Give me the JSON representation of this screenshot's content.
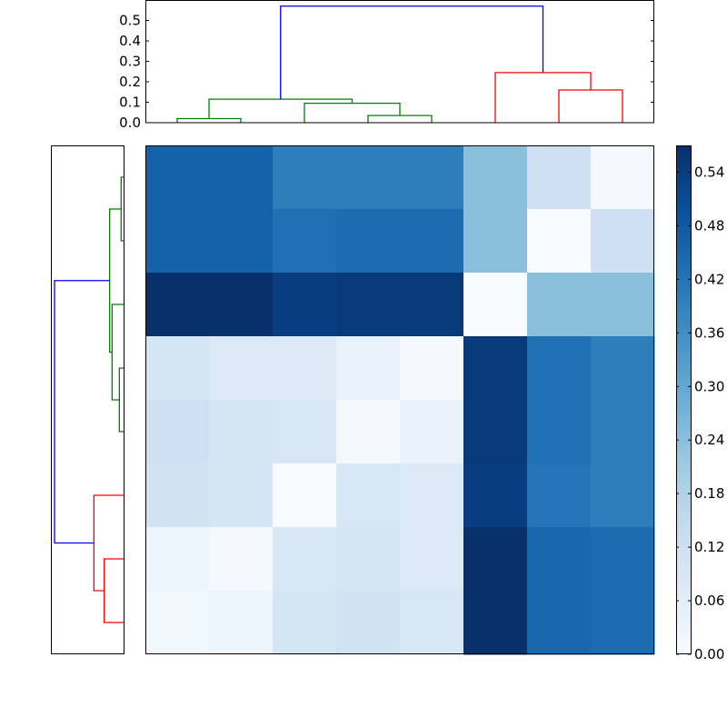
{
  "chart_data": [
    {
      "type": "dendrogram",
      "orientation": "top",
      "ylim": [
        0,
        0.6
      ],
      "yticks": [
        "0.0",
        "0.1",
        "0.2",
        "0.3",
        "0.4",
        "0.5"
      ],
      "leaf_count": 8,
      "links": [
        {
          "x1": 0.5,
          "x2": 1.5,
          "y1": 0.0,
          "y2": 0.0,
          "h": 0.02,
          "color": "#008000"
        },
        {
          "x1": 3.5,
          "x2": 4.5,
          "y1": 0.0,
          "y2": 0.0,
          "h": 0.035,
          "color": "#008000"
        },
        {
          "x1": 2.5,
          "x2": 4.0,
          "y1": 0.0,
          "y2": 0.035,
          "h": 0.095,
          "color": "#008000"
        },
        {
          "x1": 1.0,
          "x2": 3.25,
          "y1": 0.02,
          "y2": 0.095,
          "h": 0.115,
          "color": "#008000"
        },
        {
          "x1": 6.5,
          "x2": 7.5,
          "y1": 0.0,
          "y2": 0.0,
          "h": 0.16,
          "color": "#ff0000"
        },
        {
          "x1": 5.5,
          "x2": 7.0,
          "y1": 0.0,
          "y2": 0.16,
          "h": 0.245,
          "color": "#ff0000"
        },
        {
          "x1": 2.125,
          "x2": 6.25,
          "y1": 0.115,
          "y2": 0.245,
          "h": 0.57,
          "color": "#0000ff"
        }
      ]
    },
    {
      "type": "dendrogram",
      "orientation": "left",
      "leaf_count": 8,
      "links": [
        {
          "y1": 0.5,
          "y2": 1.5,
          "x1": 0.0,
          "x2": 0.0,
          "h": 0.02,
          "color": "#008000"
        },
        {
          "y1": 3.5,
          "y2": 4.5,
          "x1": 0.0,
          "x2": 0.0,
          "h": 0.035,
          "color": "#008000"
        },
        {
          "y1": 2.5,
          "y2": 4.0,
          "x1": 0.0,
          "x2": 0.035,
          "h": 0.095,
          "color": "#008000"
        },
        {
          "y1": 1.0,
          "y2": 3.25,
          "x1": 0.02,
          "x2": 0.095,
          "h": 0.115,
          "color": "#008000"
        },
        {
          "y1": 6.5,
          "y2": 7.5,
          "x1": 0.0,
          "x2": 0.0,
          "h": 0.16,
          "color": "#ff0000"
        },
        {
          "y1": 5.5,
          "y2": 7.0,
          "x1": 0.0,
          "x2": 0.16,
          "h": 0.245,
          "color": "#ff0000"
        },
        {
          "y1": 2.125,
          "y2": 6.25,
          "x1": 0.115,
          "x2": 0.245,
          "h": 0.57,
          "color": "#0000ff"
        }
      ]
    },
    {
      "type": "heatmap",
      "colormap": "Blues",
      "vmin": 0.0,
      "vmax": 0.57,
      "rows_top_to_bottom": [
        [
          0.46,
          0.46,
          0.4,
          0.4,
          0.4,
          0.24,
          0.12,
          0.01
        ],
        [
          0.46,
          0.46,
          0.43,
          0.44,
          0.44,
          0.24,
          0.0,
          0.12
        ],
        [
          0.57,
          0.57,
          0.54,
          0.55,
          0.55,
          0.0,
          0.24,
          0.24
        ],
        [
          0.1,
          0.08,
          0.08,
          0.04,
          0.01,
          0.55,
          0.43,
          0.4
        ],
        [
          0.12,
          0.1,
          0.09,
          0.01,
          0.04,
          0.55,
          0.43,
          0.4
        ],
        [
          0.11,
          0.1,
          0.0,
          0.09,
          0.08,
          0.54,
          0.42,
          0.4
        ],
        [
          0.03,
          0.01,
          0.09,
          0.1,
          0.08,
          0.57,
          0.45,
          0.44
        ],
        [
          0.02,
          0.03,
          0.1,
          0.11,
          0.09,
          0.57,
          0.45,
          0.44
        ]
      ]
    },
    {
      "type": "colorbar",
      "colormap": "Blues",
      "vmin": 0.0,
      "vmax": 0.57,
      "ticks": [
        "0.00",
        "0.06",
        "0.12",
        "0.18",
        "0.24",
        "0.30",
        "0.36",
        "0.42",
        "0.48",
        "0.54"
      ]
    }
  ]
}
